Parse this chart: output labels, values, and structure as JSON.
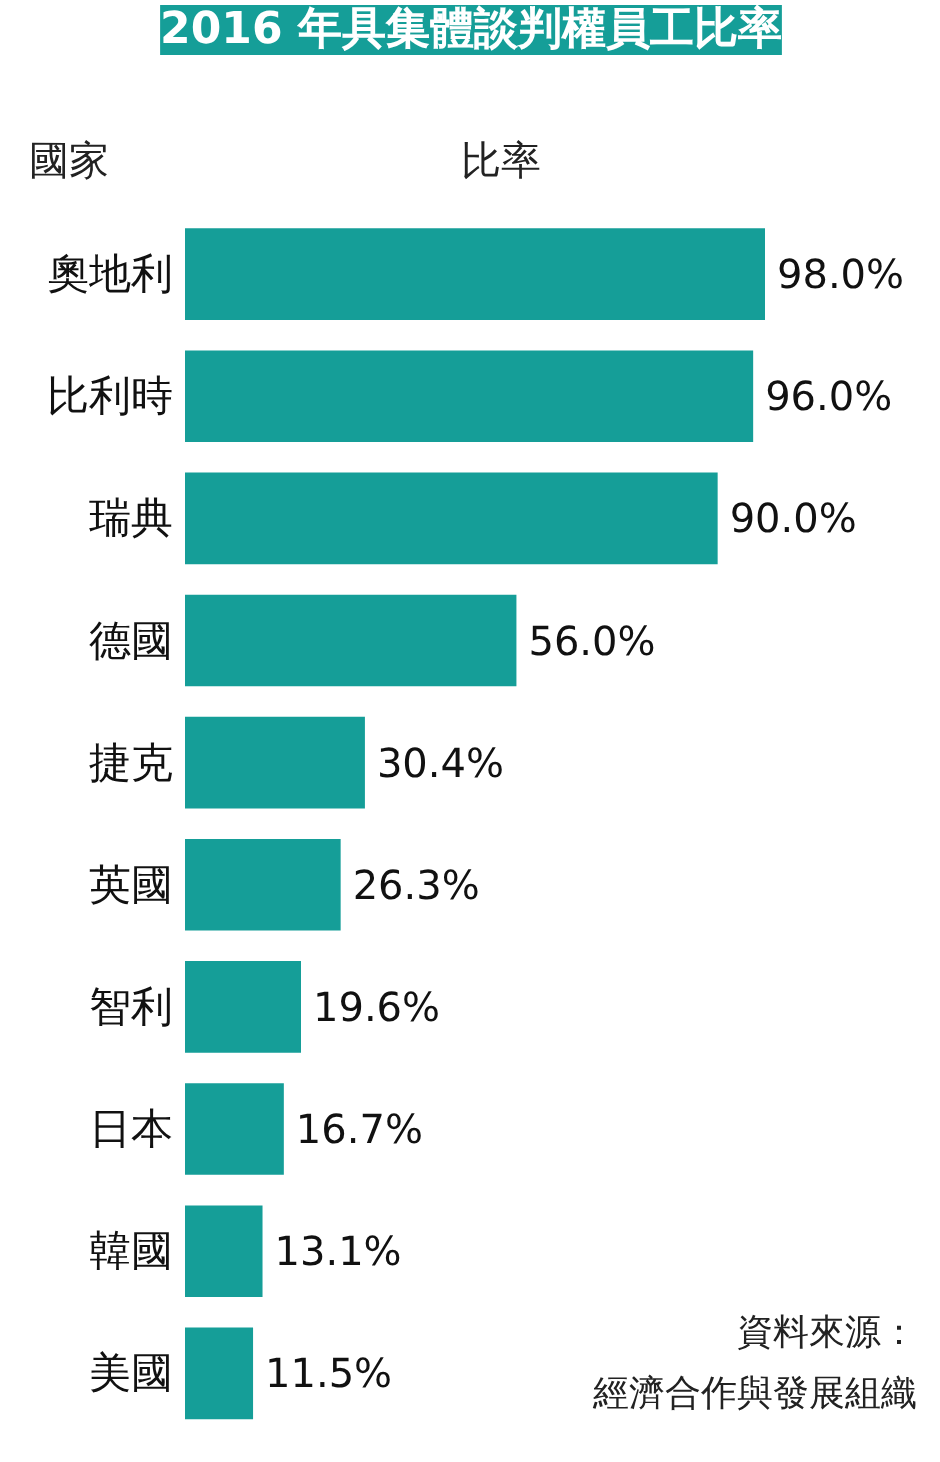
{
  "chart_data": {
    "type": "bar",
    "orientation": "horizontal",
    "title": "2016 年具集體談判權員工比率",
    "ylabel": "國家",
    "xlabel": "比率",
    "categories": [
      "奧地利",
      "比利時",
      "瑞典",
      "德國",
      "捷克",
      "英國",
      "智利",
      "日本",
      "韓國",
      "美國"
    ],
    "values": [
      98.0,
      96.0,
      90.0,
      56.0,
      30.4,
      26.3,
      19.6,
      16.7,
      13.1,
      11.5
    ],
    "value_labels": [
      "98.0%",
      "96.0%",
      "90.0%",
      "56.0%",
      "30.4%",
      "26.3%",
      "19.6%",
      "16.7%",
      "13.1%",
      "11.5%"
    ],
    "color": "#159e98",
    "annotations": [
      "資料來源：",
      "經濟合作與發展組織"
    ],
    "grid": false
  }
}
